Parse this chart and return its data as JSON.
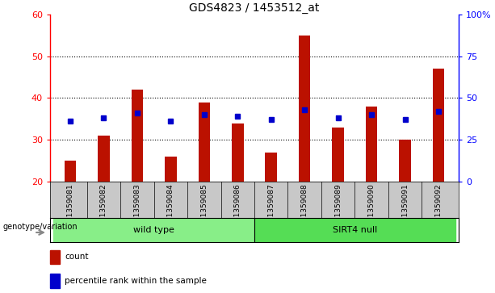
{
  "title": "GDS4823 / 1453512_at",
  "samples": [
    "GSM1359081",
    "GSM1359082",
    "GSM1359083",
    "GSM1359084",
    "GSM1359085",
    "GSM1359086",
    "GSM1359087",
    "GSM1359088",
    "GSM1359089",
    "GSM1359090",
    "GSM1359091",
    "GSM1359092"
  ],
  "counts": [
    25,
    31,
    42,
    26,
    39,
    34,
    27,
    55,
    33,
    38,
    30,
    47
  ],
  "percentiles": [
    36,
    38,
    41,
    36,
    40,
    39,
    37,
    43,
    38,
    40,
    37,
    42
  ],
  "ylim_left": [
    20,
    60
  ],
  "ylim_right": [
    0,
    100
  ],
  "yticks_left": [
    20,
    30,
    40,
    50,
    60
  ],
  "yticks_right": [
    0,
    25,
    50,
    75,
    100
  ],
  "ytick_labels_right": [
    "0",
    "25",
    "50",
    "75",
    "100%"
  ],
  "group_label": "genotype/variation",
  "wild_type_label": "wild type",
  "sirt4_label": "SIRT4 null",
  "bar_color": "#BB1100",
  "dot_color": "#0000CC",
  "bg_color": "#C8C8C8",
  "green_color": "#88EE88",
  "plot_bg": "#FFFFFF",
  "legend_items": [
    "count",
    "percentile rank within the sample"
  ],
  "dotted_gridlines": [
    30,
    40,
    50
  ],
  "bar_width": 0.35
}
